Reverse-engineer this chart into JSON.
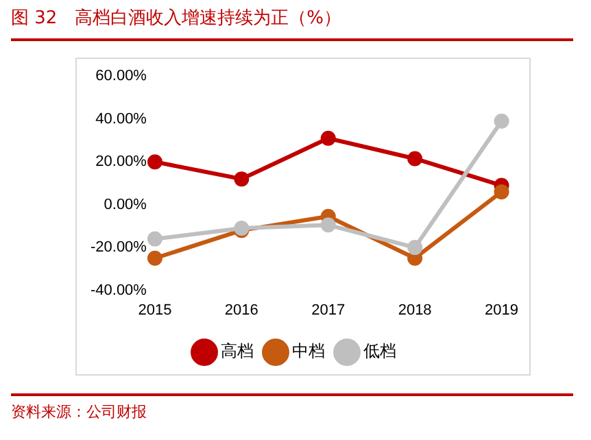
{
  "chart_data": {
    "type": "line",
    "title": "图 32　高档白酒收入增速持续为正（%）",
    "categories": [
      "2015",
      "2016",
      "2017",
      "2018",
      "2019"
    ],
    "series": [
      {
        "name": "高档",
        "color": "#c00000",
        "values": [
          20,
          12,
          31,
          21.5,
          9
        ]
      },
      {
        "name": "中档",
        "color": "#c55a11",
        "values": [
          -25,
          -12,
          -5.5,
          -25,
          6
        ]
      },
      {
        "name": "低档",
        "color": "#bfbfbf",
        "values": [
          -16,
          -11,
          -9.5,
          -20,
          39
        ]
      }
    ],
    "ylim": [
      -40,
      60
    ],
    "yticks": [
      {
        "value": -40,
        "label": "-40.00%"
      },
      {
        "value": -20,
        "label": "-20.00%"
      },
      {
        "value": 0,
        "label": "0.00%"
      },
      {
        "value": 20,
        "label": "20.00%"
      },
      {
        "value": 40,
        "label": "40.00%"
      },
      {
        "value": 60,
        "label": "60.00%"
      }
    ],
    "grid": false,
    "legend": "bottom",
    "marker": "circle",
    "line_style": "solid",
    "annotations": [
      "资料来源：公司财报"
    ]
  }
}
